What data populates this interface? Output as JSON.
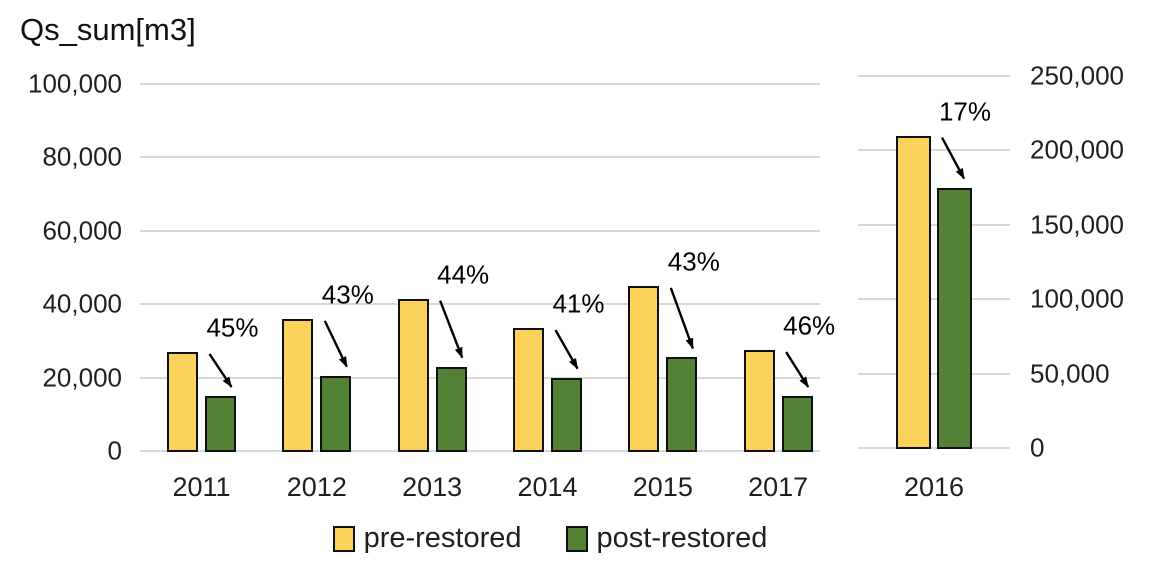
{
  "title": "Qs_sum[m3]",
  "chart_data": {
    "type": "bar",
    "title": "Qs_sum[m3]",
    "categories": [
      "2011",
      "2012",
      "2013",
      "2014",
      "2015",
      "2017",
      "2016"
    ],
    "series": [
      {
        "name": "pre-restored",
        "color": "#FBD35B",
        "values": [
          27000,
          36000,
          41500,
          33500,
          45000,
          27500,
          210000
        ]
      },
      {
        "name": "post-restored",
        "color": "#538135",
        "values": [
          15000,
          20500,
          23000,
          20000,
          25500,
          15000,
          175000
        ]
      }
    ],
    "annotations": [
      {
        "category": "2011",
        "text": "45%"
      },
      {
        "category": "2012",
        "text": "43%"
      },
      {
        "category": "2013",
        "text": "44%"
      },
      {
        "category": "2014",
        "text": "41%"
      },
      {
        "category": "2015",
        "text": "43%"
      },
      {
        "category": "2017",
        "text": "46%"
      },
      {
        "category": "2016",
        "text": "17%"
      }
    ],
    "primary_axis": {
      "side": "left",
      "ylim": [
        0,
        100000
      ],
      "ticks": [
        {
          "v": 0,
          "label": "0"
        },
        {
          "v": 20000,
          "label": "20,000"
        },
        {
          "v": 40000,
          "label": "40,000"
        },
        {
          "v": 60000,
          "label": "60,000"
        },
        {
          "v": 80000,
          "label": "80,000"
        },
        {
          "v": 100000,
          "label": "100,000"
        }
      ],
      "applies_to": [
        "2011",
        "2012",
        "2013",
        "2014",
        "2015",
        "2017"
      ]
    },
    "secondary_axis": {
      "side": "right",
      "ylim": [
        0,
        250000
      ],
      "ticks": [
        {
          "v": 0,
          "label": "0"
        },
        {
          "v": 50000,
          "label": "50,000"
        },
        {
          "v": 100000,
          "label": "100,000"
        },
        {
          "v": 150000,
          "label": "150,000"
        },
        {
          "v": 200000,
          "label": "200,000"
        },
        {
          "v": 250000,
          "label": "250,000"
        }
      ],
      "applies_to": [
        "2016"
      ]
    },
    "grid": true,
    "legend_position": "bottom"
  },
  "legend": {
    "items": [
      {
        "label": "pre-restored",
        "color": "#FBD35B"
      },
      {
        "label": "post-restored",
        "color": "#538135"
      }
    ]
  },
  "colors": {
    "pre_restored": "#FBD35B",
    "post_restored": "#538135",
    "bar_border": "#0f0f0f",
    "gridline": "#d8d8d8",
    "text": "#1f1f1f",
    "annotation": "#000000"
  }
}
